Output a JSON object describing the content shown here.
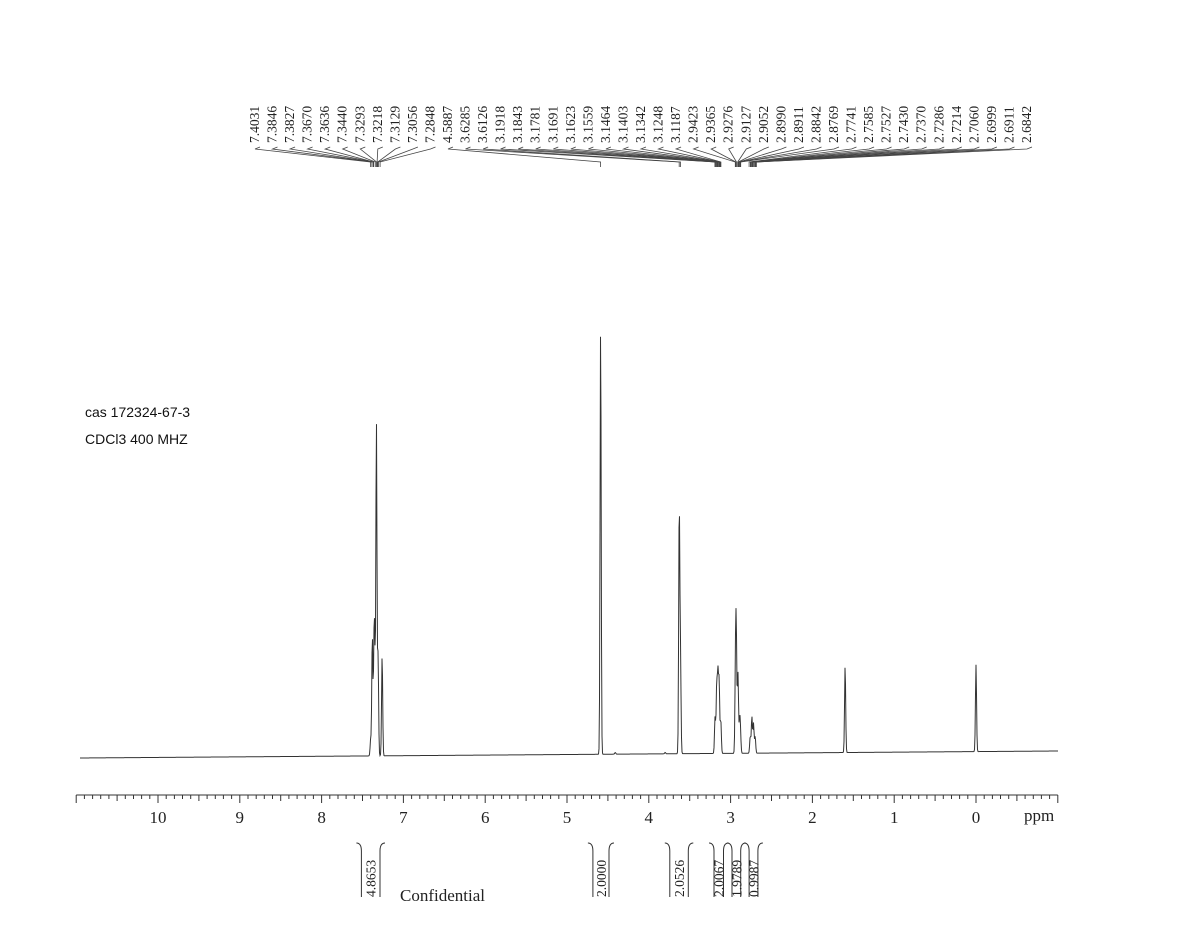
{
  "sample": {
    "cas_line": "cas  172324-67-3",
    "conditions_line": "CDCl3   400 MHZ"
  },
  "watermark": "Confidential",
  "chart_data": {
    "type": "line",
    "title": "",
    "xlabel": "ppm",
    "ylabel": "",
    "x_reversed": true,
    "xlim": [
      11.0,
      -1.0
    ],
    "x_ticks": [
      "10",
      "9",
      "8",
      "7",
      "6",
      "5",
      "4",
      "3",
      "2",
      "1",
      "0"
    ],
    "grid": false,
    "peak_labels": [
      "7.4031",
      "7.3846",
      "7.3827",
      "7.3670",
      "7.3636",
      "7.3440",
      "7.3293",
      "7.3218",
      "7.3129",
      "7.3056",
      "7.2848",
      "4.5887",
      "3.6285",
      "3.6126",
      "3.1918",
      "3.1843",
      "3.1781",
      "3.1691",
      "3.1623",
      "3.1559",
      "3.1464",
      "3.1403",
      "3.1342",
      "3.1248",
      "3.1187",
      "2.9423",
      "2.9365",
      "2.9276",
      "2.9127",
      "2.9052",
      "2.8990",
      "2.8911",
      "2.8842",
      "2.8769",
      "2.7741",
      "2.7585",
      "2.7527",
      "2.7430",
      "2.7370",
      "2.7286",
      "2.7214",
      "2.7060",
      "2.6999",
      "2.6911",
      "2.6842"
    ],
    "peaks": [
      {
        "ppm": 7.4,
        "height": 0.05
      },
      {
        "ppm": 7.38,
        "height": 0.36
      },
      {
        "ppm": 7.36,
        "height": 0.28
      },
      {
        "ppm": 7.35,
        "height": 0.27
      },
      {
        "ppm": 7.33,
        "height": 1.0
      },
      {
        "ppm": 7.31,
        "height": 0.3
      },
      {
        "ppm": 7.26,
        "height": 0.3
      },
      {
        "ppm": 4.589,
        "height": 1.28
      },
      {
        "ppm": 4.41,
        "height": 0.005
      },
      {
        "ppm": 3.8,
        "height": 0.004
      },
      {
        "ppm": 3.628,
        "height": 0.73
      },
      {
        "ppm": 3.613,
        "height": 0.29
      },
      {
        "ppm": 3.19,
        "height": 0.11
      },
      {
        "ppm": 3.17,
        "height": 0.2
      },
      {
        "ppm": 3.155,
        "height": 0.23
      },
      {
        "ppm": 3.14,
        "height": 0.21
      },
      {
        "ppm": 3.12,
        "height": 0.1
      },
      {
        "ppm": 2.94,
        "height": 0.26
      },
      {
        "ppm": 2.93,
        "height": 0.31
      },
      {
        "ppm": 2.91,
        "height": 0.24
      },
      {
        "ppm": 2.89,
        "height": 0.09
      },
      {
        "ppm": 2.88,
        "height": 0.06
      },
      {
        "ppm": 2.76,
        "height": 0.05
      },
      {
        "ppm": 2.74,
        "height": 0.11
      },
      {
        "ppm": 2.72,
        "height": 0.09
      },
      {
        "ppm": 2.7,
        "height": 0.05
      },
      {
        "ppm": 1.6,
        "height": 0.26
      },
      {
        "ppm": 0.0,
        "height": 0.26
      }
    ],
    "integrals": [
      {
        "label": "4.8653",
        "from": 7.55,
        "to": 7.25
      },
      {
        "label": "2.0000",
        "from": 4.72,
        "to": 4.45
      },
      {
        "label": "2.0526",
        "from": 3.78,
        "to": 3.48
      },
      {
        "label": "2.0067",
        "from": 3.24,
        "to": 3.05
      },
      {
        "label": "1.9789",
        "from": 3.02,
        "to": 2.84
      },
      {
        "label": "0.9987",
        "from": 2.81,
        "to": 2.63
      }
    ]
  }
}
